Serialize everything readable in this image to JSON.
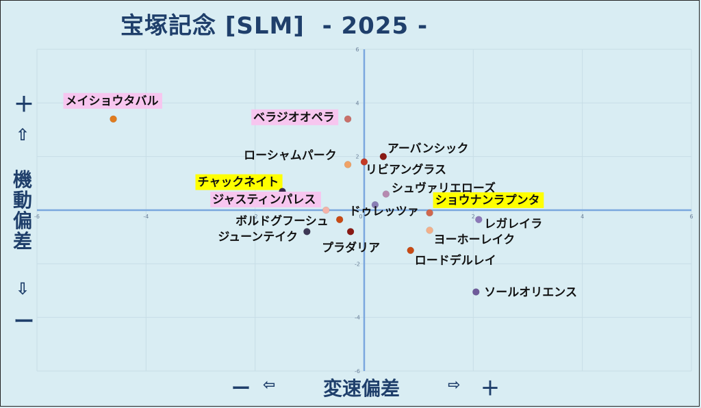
{
  "title": "宝塚記念 [SLM]  - 2025 -",
  "y_axis": {
    "plus": "＋",
    "up_arrow": "⇧",
    "label": "機動偏差",
    "down_arrow": "⇩",
    "minus": "ー"
  },
  "x_axis": {
    "minus": "ー",
    "left_arrow": "⇦",
    "label": "変速偏差",
    "right_arrow": "⇨",
    "plus": "＋"
  },
  "chart_data": {
    "type": "scatter",
    "title": "宝塚記念 [SLM]  - 2025 -",
    "xlabel": "変速偏差",
    "ylabel": "機動偏差",
    "xlim": [
      -6,
      6
    ],
    "ylim": [
      -6,
      6
    ],
    "xticks": [
      -6,
      -4,
      -2,
      0,
      2,
      4,
      6
    ],
    "yticks": [
      6,
      4,
      2,
      0,
      -2,
      -4,
      -6
    ],
    "grid": true,
    "points": [
      {
        "name": "メイショウタバル",
        "x": -4.6,
        "y": 3.4,
        "color": "#e07b1e",
        "highlight": "#f7c6ef"
      },
      {
        "name": "ベラジオオペラ",
        "x": -0.3,
        "y": 3.4,
        "color": "#c9706a",
        "highlight": "#f7c6ef"
      },
      {
        "name": "ローシャムパーク",
        "x": -0.3,
        "y": 1.7,
        "color": "#f0a266",
        "highlight": ""
      },
      {
        "name": "アーバンシック",
        "x": 0.35,
        "y": 2.0,
        "color": "#8a1a14",
        "highlight": ""
      },
      {
        "name": "リビアングラス",
        "x": 0.0,
        "y": 1.8,
        "color": "#c43a26",
        "highlight": ""
      },
      {
        "name": "シュヴァリエローズ",
        "x": 0.4,
        "y": 0.6,
        "color": "#b68ab0",
        "highlight": ""
      },
      {
        "name": "チャックネイト",
        "x": -1.5,
        "y": 0.7,
        "color": "#3b2a4f",
        "highlight": "#ffff00"
      },
      {
        "name": "ジャスティンパレス",
        "x": -0.7,
        "y": 0.0,
        "color": "#f4b3a8",
        "highlight": "#f7c6ef"
      },
      {
        "name": "ショウナンラプンタ",
        "x": 1.2,
        "y": -0.1,
        "color": "#d0674e",
        "highlight": "#ffff00"
      },
      {
        "name": "ドゥレッツァ",
        "x": 0.2,
        "y": 0.2,
        "color": "#8a7fb5",
        "highlight": ""
      },
      {
        "name": "ボルドグフーシュ",
        "x": -0.45,
        "y": -0.35,
        "color": "#c84a14",
        "highlight": ""
      },
      {
        "name": "レガレイラ",
        "x": 2.1,
        "y": -0.35,
        "color": "#8c78b8",
        "highlight": ""
      },
      {
        "name": "ヨーホーレイク",
        "x": 1.2,
        "y": -0.75,
        "color": "#f2b08a",
        "highlight": ""
      },
      {
        "name": "ジューンテイク",
        "x": -1.05,
        "y": -0.8,
        "color": "#3d3855",
        "highlight": ""
      },
      {
        "name": "プラダリア",
        "x": -0.25,
        "y": -0.8,
        "color": "#8a1a14",
        "highlight": ""
      },
      {
        "name": "ロードデルレイ",
        "x": 0.85,
        "y": -1.5,
        "color": "#c84a14",
        "highlight": ""
      },
      {
        "name": "ソールオリエンス",
        "x": 2.05,
        "y": -3.05,
        "color": "#6e5a9a",
        "highlight": ""
      }
    ]
  }
}
